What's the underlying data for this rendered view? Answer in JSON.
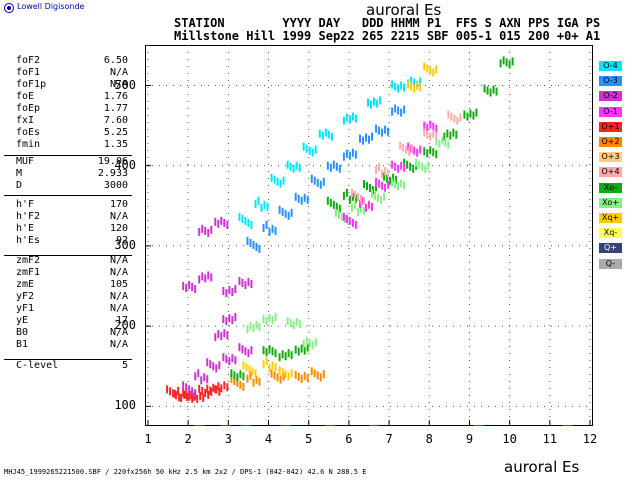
{
  "logo_text": "Lowell Digisonde",
  "title_top": "auroral Es",
  "header": {
    "labels": "STATION        YYYY DAY   DDD HHMM P1  FFS S AXN PPS IGA PS",
    "values": "Millstone Hill 1999 Sep22 265 2215 SBF 005-1 015 200 +0+ A1"
  },
  "params": [
    {
      "k": "foF2",
      "v": "6.50"
    },
    {
      "k": "foF1",
      "v": "N/A"
    },
    {
      "k": "foF1p",
      "v": "N/A"
    },
    {
      "k": "foE",
      "v": "1.76"
    },
    {
      "k": "foEp",
      "v": "1.77"
    },
    {
      "k": "fxI",
      "v": "7.60"
    },
    {
      "k": "foEs",
      "v": "5.25"
    },
    {
      "k": "fmin",
      "v": "1.35"
    },
    {
      "k": "MUF",
      "v": "19.06"
    },
    {
      "k": "M",
      "v": "2.933"
    },
    {
      "k": "D",
      "v": "3000"
    },
    {
      "k": "h'F",
      "v": "170"
    },
    {
      "k": "h'F2",
      "v": "N/A"
    },
    {
      "k": "h'E",
      "v": "120"
    },
    {
      "k": "h'Es",
      "v": "92"
    },
    {
      "k": "zmF2",
      "v": "N/A"
    },
    {
      "k": "zmF1",
      "v": "N/A"
    },
    {
      "k": "zmE",
      "v": "105"
    },
    {
      "k": "yF2",
      "v": "N/A"
    },
    {
      "k": "yF1",
      "v": "N/A"
    },
    {
      "k": "yE",
      "v": "17"
    },
    {
      "k": "B0",
      "v": "N/A"
    },
    {
      "k": "B1",
      "v": "N/A"
    },
    {
      "k": "C-level",
      "v": "5"
    }
  ],
  "legend": [
    {
      "label": "O-4",
      "bg": "#00e5ff",
      "fg": "#000000"
    },
    {
      "label": "O-3",
      "bg": "#2b8fff",
      "fg": "#000000"
    },
    {
      "label": "O-2",
      "bg": "#cc33cc",
      "fg": "#000000"
    },
    {
      "label": "O-1",
      "bg": "#ff33ff",
      "fg": "#000000"
    },
    {
      "label": "O+1",
      "bg": "#ff2222",
      "fg": "#000000"
    },
    {
      "label": "O+2",
      "bg": "#ff8800",
      "fg": "#000000"
    },
    {
      "label": "O+3",
      "bg": "#ffcc77",
      "fg": "#000000"
    },
    {
      "label": "O+4",
      "bg": "#ffaaaa",
      "fg": "#000000"
    },
    {
      "label": "Xo-",
      "bg": "#11aa11",
      "fg": "#000000"
    },
    {
      "label": "Xo+",
      "bg": "#88ee88",
      "fg": "#000000"
    },
    {
      "label": "Xq+",
      "bg": "#ffcc00",
      "fg": "#000000"
    },
    {
      "label": "Xq-",
      "bg": "#ffff55",
      "fg": "#000000"
    },
    {
      "label": "Q+",
      "bg": "#334477",
      "fg": "#ffffff"
    },
    {
      "label": "Q-",
      "bg": "#aaaaaa",
      "fg": "#000000"
    }
  ],
  "footer_text": "MHJ45_1999265221500.SBF / 220fx256h 50 kHz 2.5 km 2x2 / DPS-1 (042-042) 42.6 N 288.5 E",
  "footer_title": "auroral Es",
  "chart_data": {
    "type": "scatter",
    "title": "auroral Es",
    "xlabel": "",
    "ylabel": "",
    "x_ticks": [
      "1",
      "2",
      "3",
      "4",
      "5",
      "6",
      "7",
      "8",
      "9",
      "10",
      "11",
      "12"
    ],
    "y_ticks": [
      "100",
      "200",
      "300",
      "400",
      "500"
    ],
    "xlim": [
      1,
      12
    ],
    "ylim": [
      78,
      548
    ],
    "grid": true,
    "traces": [
      {
        "name": "",
        "color": "#ff2222",
        "points": [
          [
            1.6,
            115
          ],
          [
            1.8,
            113
          ],
          [
            2.0,
            112
          ],
          [
            2.2,
            113
          ],
          [
            2.4,
            118
          ],
          [
            2.6,
            122
          ],
          [
            2.8,
            125
          ]
        ]
      },
      {
        "name": "",
        "color": "#ff8800",
        "points": [
          [
            3.2,
            128
          ],
          [
            3.6,
            132
          ],
          [
            4.2,
            136
          ],
          [
            4.8,
            138
          ],
          [
            5.2,
            140
          ]
        ]
      },
      {
        "name": "",
        "color": "#cc33cc",
        "points": [
          [
            2.0,
            120
          ],
          [
            2.3,
            135
          ],
          [
            2.6,
            150
          ],
          [
            3.0,
            160
          ],
          [
            3.4,
            170
          ],
          [
            2.0,
            250
          ],
          [
            2.4,
            262
          ],
          [
            3.0,
            245
          ],
          [
            3.4,
            255
          ],
          [
            2.4,
            320
          ],
          [
            2.8,
            330
          ],
          [
            2.8,
            190
          ],
          [
            3.0,
            210
          ]
        ]
      },
      {
        "name": "",
        "color": "#11aa11",
        "points": [
          [
            5.6,
            350
          ],
          [
            6.0,
            360
          ],
          [
            6.5,
            372
          ],
          [
            7.0,
            385
          ],
          [
            7.5,
            400
          ],
          [
            8.0,
            418
          ],
          [
            8.5,
            440
          ],
          [
            9.0,
            465
          ],
          [
            9.5,
            495
          ],
          [
            9.9,
            530
          ],
          [
            4.0,
            170
          ],
          [
            4.4,
            165
          ],
          [
            4.8,
            172
          ],
          [
            3.2,
            140
          ]
        ]
      },
      {
        "name": "",
        "color": "#88ee88",
        "points": [
          [
            5.8,
            335
          ],
          [
            6.2,
            345
          ],
          [
            6.7,
            360
          ],
          [
            7.2,
            378
          ],
          [
            7.8,
            400
          ],
          [
            8.3,
            430
          ],
          [
            3.6,
            200
          ],
          [
            4.0,
            210
          ],
          [
            4.6,
            205
          ],
          [
            5.0,
            180
          ]
        ]
      },
      {
        "name": "",
        "color": "#2b8fff",
        "points": [
          [
            3.6,
            300
          ],
          [
            4.0,
            320
          ],
          [
            4.4,
            340
          ],
          [
            4.8,
            360
          ],
          [
            5.2,
            380
          ],
          [
            5.6,
            400
          ],
          [
            6.0,
            415
          ],
          [
            6.4,
            435
          ],
          [
            6.8,
            445
          ],
          [
            7.2,
            470
          ]
        ]
      },
      {
        "name": "",
        "color": "#00e5ff",
        "points": [
          [
            3.4,
            330
          ],
          [
            3.8,
            350
          ],
          [
            4.2,
            380
          ],
          [
            4.6,
            400
          ],
          [
            5.0,
            420
          ],
          [
            5.4,
            440
          ],
          [
            6.0,
            460
          ],
          [
            6.6,
            480
          ],
          [
            7.2,
            500
          ],
          [
            7.6,
            505
          ]
        ]
      },
      {
        "name": "",
        "color": "#ff33ff",
        "points": [
          [
            6.0,
            330
          ],
          [
            6.4,
            350
          ],
          [
            6.8,
            375
          ],
          [
            7.2,
            400
          ],
          [
            7.6,
            420
          ],
          [
            8.0,
            450
          ]
        ]
      },
      {
        "name": "",
        "color": "#ffaaaa",
        "points": [
          [
            6.2,
            360
          ],
          [
            6.8,
            392
          ],
          [
            7.4,
            420
          ],
          [
            8.0,
            440
          ],
          [
            8.6,
            460
          ]
        ]
      },
      {
        "name": "",
        "color": "#ffcc00",
        "points": [
          [
            3.5,
            145
          ],
          [
            4.0,
            150
          ],
          [
            4.4,
            140
          ],
          [
            7.6,
            500
          ],
          [
            8.0,
            520
          ]
        ]
      }
    ]
  }
}
